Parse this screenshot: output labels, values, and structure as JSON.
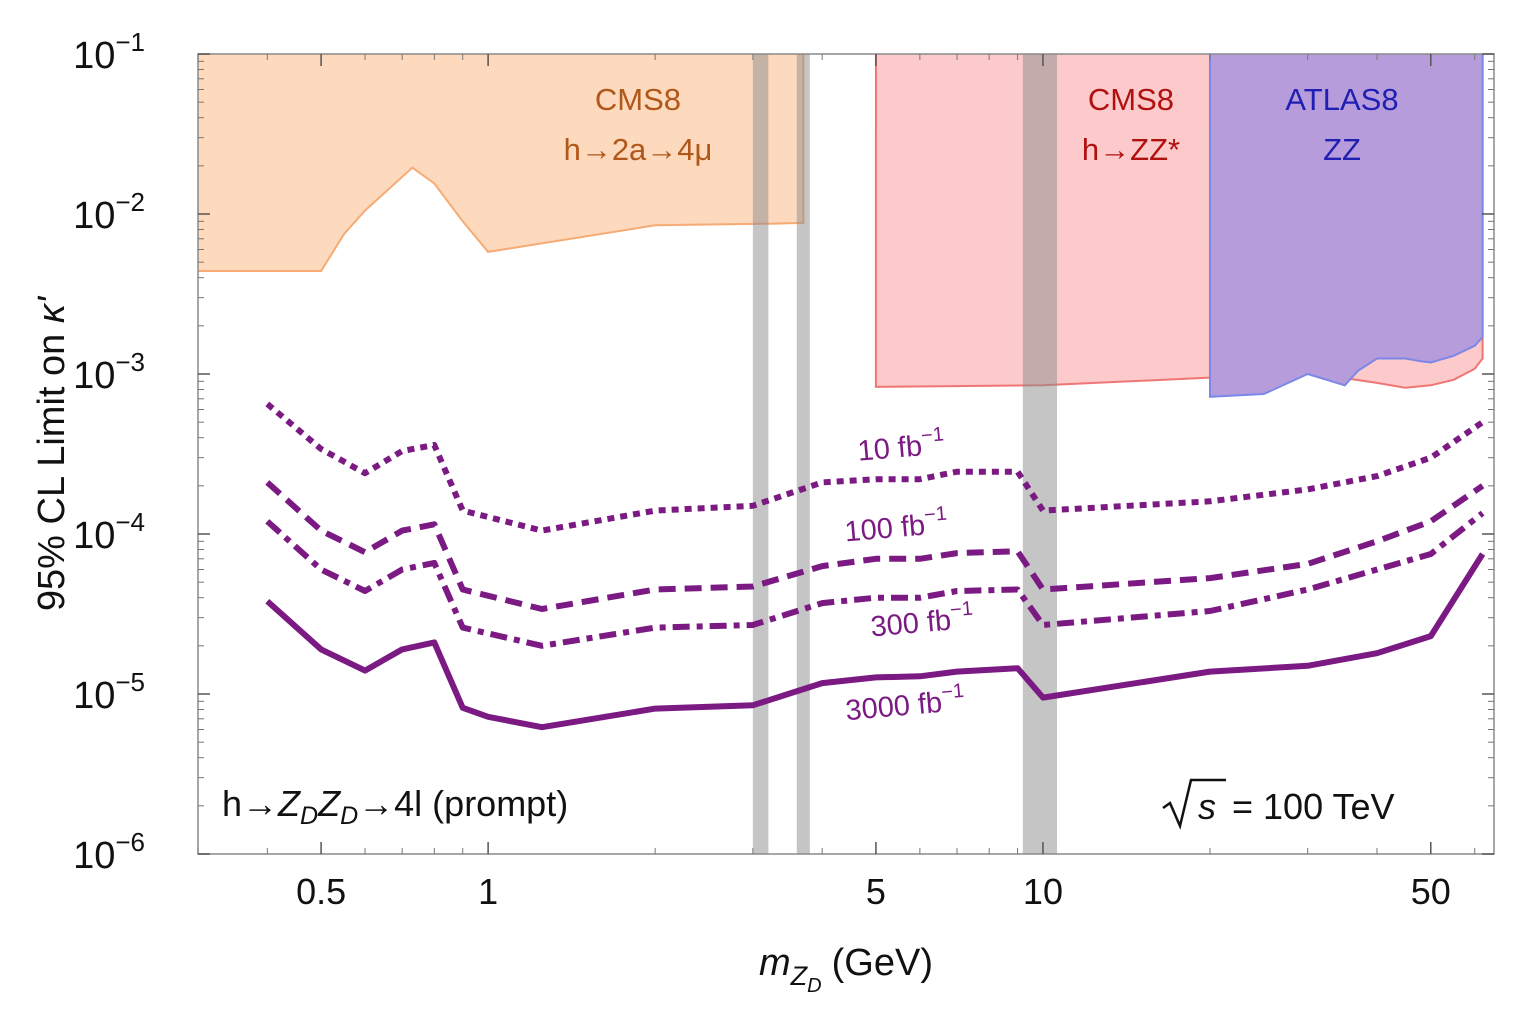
{
  "chart_data": {
    "type": "line",
    "title": "",
    "xlabel": {
      "main": "m",
      "sub1": "Z",
      "sub2": "D",
      "unit": "(GeV)"
    },
    "ylabel": {
      "text": "95% CL Limit on ",
      "symbol": "κ'"
    },
    "x_scale": "log",
    "y_scale": "log",
    "xlim": [
      0.3,
      65
    ],
    "ylim": [
      1e-06,
      0.1
    ],
    "x_ticks": [
      {
        "value": 0.5,
        "label": "0.5"
      },
      {
        "value": 1,
        "label": "1"
      },
      {
        "value": 5,
        "label": "5"
      },
      {
        "value": 10,
        "label": "10"
      },
      {
        "value": 50,
        "label": "50"
      }
    ],
    "y_ticks": [
      {
        "value": 1e-06,
        "base": "10",
        "exp": "−6"
      },
      {
        "value": 1e-05,
        "base": "10",
        "exp": "−5"
      },
      {
        "value": 0.0001,
        "base": "10",
        "exp": "−4"
      },
      {
        "value": 0.001,
        "base": "10",
        "exp": "−3"
      },
      {
        "value": 0.01,
        "base": "10",
        "exp": "−2"
      },
      {
        "value": 0.1,
        "base": "10",
        "exp": "−1"
      }
    ],
    "grid": false,
    "vetoed_mass_bands": [
      {
        "range": [
          3.0,
          3.2
        ]
      },
      {
        "range": [
          3.6,
          3.8
        ]
      },
      {
        "range": [
          9.2,
          10.6
        ]
      }
    ],
    "excluded_regions": [
      {
        "label_lines": [
          "CMS8",
          "h→2a→4μ"
        ],
        "fill": "#fdd9bd",
        "stroke": "#f6ab75",
        "text_color": "#b0571a",
        "boundary_x": [
          0.3,
          0.5,
          0.55,
          0.6,
          0.65,
          0.73,
          0.8,
          0.9,
          1.0,
          2.0,
          3.2,
          3.7
        ],
        "boundary_y": [
          0.0044,
          0.0044,
          0.0075,
          0.0105,
          0.0135,
          0.0195,
          0.0155,
          0.009,
          0.0058,
          0.0085,
          0.0087,
          0.0088
        ],
        "x_max": 3.7
      },
      {
        "label_lines": [
          "CMS8",
          "h→ZZ*"
        ],
        "fill": "#fccaca",
        "stroke": "#f07575",
        "text_color": "#b01010",
        "boundary_x": [
          5.0,
          10.0,
          20.0,
          30.0,
          40.0,
          45.0,
          50.0,
          55.0,
          60.0,
          62.0
        ],
        "boundary_y": [
          0.00083,
          0.00085,
          0.00095,
          0.00102,
          0.00088,
          0.00082,
          0.00085,
          0.00092,
          0.00108,
          0.00125
        ],
        "x_min": 5.0,
        "x_max": 62.0
      },
      {
        "label_lines": [
          "ATLAS8",
          "ZZ"
        ],
        "fill": "#b79cdb",
        "stroke": "#7b88e8",
        "text_color": "#1f1fb3",
        "boundary_x": [
          20.0,
          25.0,
          30.0,
          35.0,
          37.0,
          40.0,
          45.0,
          48.0,
          50.0,
          55.0,
          60.0,
          62.0
        ],
        "boundary_y": [
          0.00072,
          0.00075,
          0.001,
          0.00085,
          0.00105,
          0.00125,
          0.00125,
          0.0012,
          0.00118,
          0.0013,
          0.0015,
          0.0017
        ],
        "x_min": 20.0,
        "x_max": 62.0
      }
    ],
    "series": [
      {
        "name": "10 fb⁻¹",
        "label_base": "10 fb",
        "label_exp": "−1",
        "style": "dotted",
        "x": [
          0.4,
          0.5,
          0.6,
          0.7,
          0.8,
          0.9,
          1.25,
          2.0,
          3.0,
          4.0,
          5.0,
          6.0,
          7.0,
          9.0,
          10.0,
          20.0,
          30.0,
          40.0,
          50.0,
          62.0
        ],
        "y": [
          0.00065,
          0.00034,
          0.00024,
          0.00033,
          0.00036,
          0.00014,
          0.000105,
          0.00014,
          0.00015,
          0.00021,
          0.00022,
          0.00022,
          0.000245,
          0.000245,
          0.00014,
          0.00016,
          0.00019,
          0.00023,
          0.0003,
          0.0005
        ]
      },
      {
        "name": "100 fb⁻¹",
        "label_base": "100 fb",
        "label_exp": "−1",
        "style": "dashed",
        "x": [
          0.4,
          0.5,
          0.6,
          0.7,
          0.8,
          0.9,
          1.25,
          2.0,
          3.0,
          4.0,
          5.0,
          6.0,
          7.0,
          9.0,
          10.0,
          20.0,
          30.0,
          40.0,
          50.0,
          62.0
        ],
        "y": [
          0.00021,
          0.000105,
          7.7e-05,
          0.000105,
          0.000115,
          4.5e-05,
          3.4e-05,
          4.5e-05,
          4.7e-05,
          6.3e-05,
          7e-05,
          7e-05,
          7.6e-05,
          7.8e-05,
          4.5e-05,
          5.3e-05,
          6.5e-05,
          9e-05,
          0.00012,
          0.0002
        ]
      },
      {
        "name": "300 fb⁻¹",
        "label_base": "300 fb",
        "label_exp": "−1",
        "style": "dashdot",
        "x": [
          0.4,
          0.5,
          0.6,
          0.7,
          0.8,
          0.9,
          1.25,
          2.0,
          3.0,
          4.0,
          5.0,
          6.0,
          7.0,
          9.0,
          10.0,
          20.0,
          30.0,
          40.0,
          50.0,
          62.0
        ],
        "y": [
          0.00012,
          6e-05,
          4.4e-05,
          6e-05,
          6.6e-05,
          2.6e-05,
          2e-05,
          2.6e-05,
          2.7e-05,
          3.7e-05,
          4e-05,
          4e-05,
          4.4e-05,
          4.5e-05,
          2.7e-05,
          3.3e-05,
          4.5e-05,
          6e-05,
          7.5e-05,
          0.000135
        ]
      },
      {
        "name": "3000 fb⁻¹",
        "label_base": "3000 fb",
        "label_exp": "−1",
        "style": "solid",
        "x": [
          0.4,
          0.5,
          0.6,
          0.7,
          0.8,
          0.9,
          1.0,
          1.25,
          2.0,
          3.0,
          4.0,
          5.0,
          6.0,
          7.0,
          9.0,
          10.0,
          20.0,
          30.0,
          40.0,
          50.0,
          62.0
        ],
        "y": [
          3.8e-05,
          1.9e-05,
          1.4e-05,
          1.9e-05,
          2.1e-05,
          8.2e-06,
          7.2e-06,
          6.2e-06,
          8.1e-06,
          8.5e-06,
          1.17e-05,
          1.27e-05,
          1.29e-05,
          1.38e-05,
          1.45e-05,
          9.5e-06,
          1.38e-05,
          1.5e-05,
          1.8e-05,
          2.3e-05,
          7.5e-05
        ]
      }
    ],
    "series_color": "#7b1a82",
    "annotations": {
      "process": {
        "prefix": "h→",
        "z1": "Z",
        "z1sub": "D",
        "z2": "Z",
        "z2sub": "D",
        "suffix": "→4l (prompt)"
      },
      "energy": {
        "sym": "s",
        "text": " = 100 TeV"
      }
    }
  }
}
